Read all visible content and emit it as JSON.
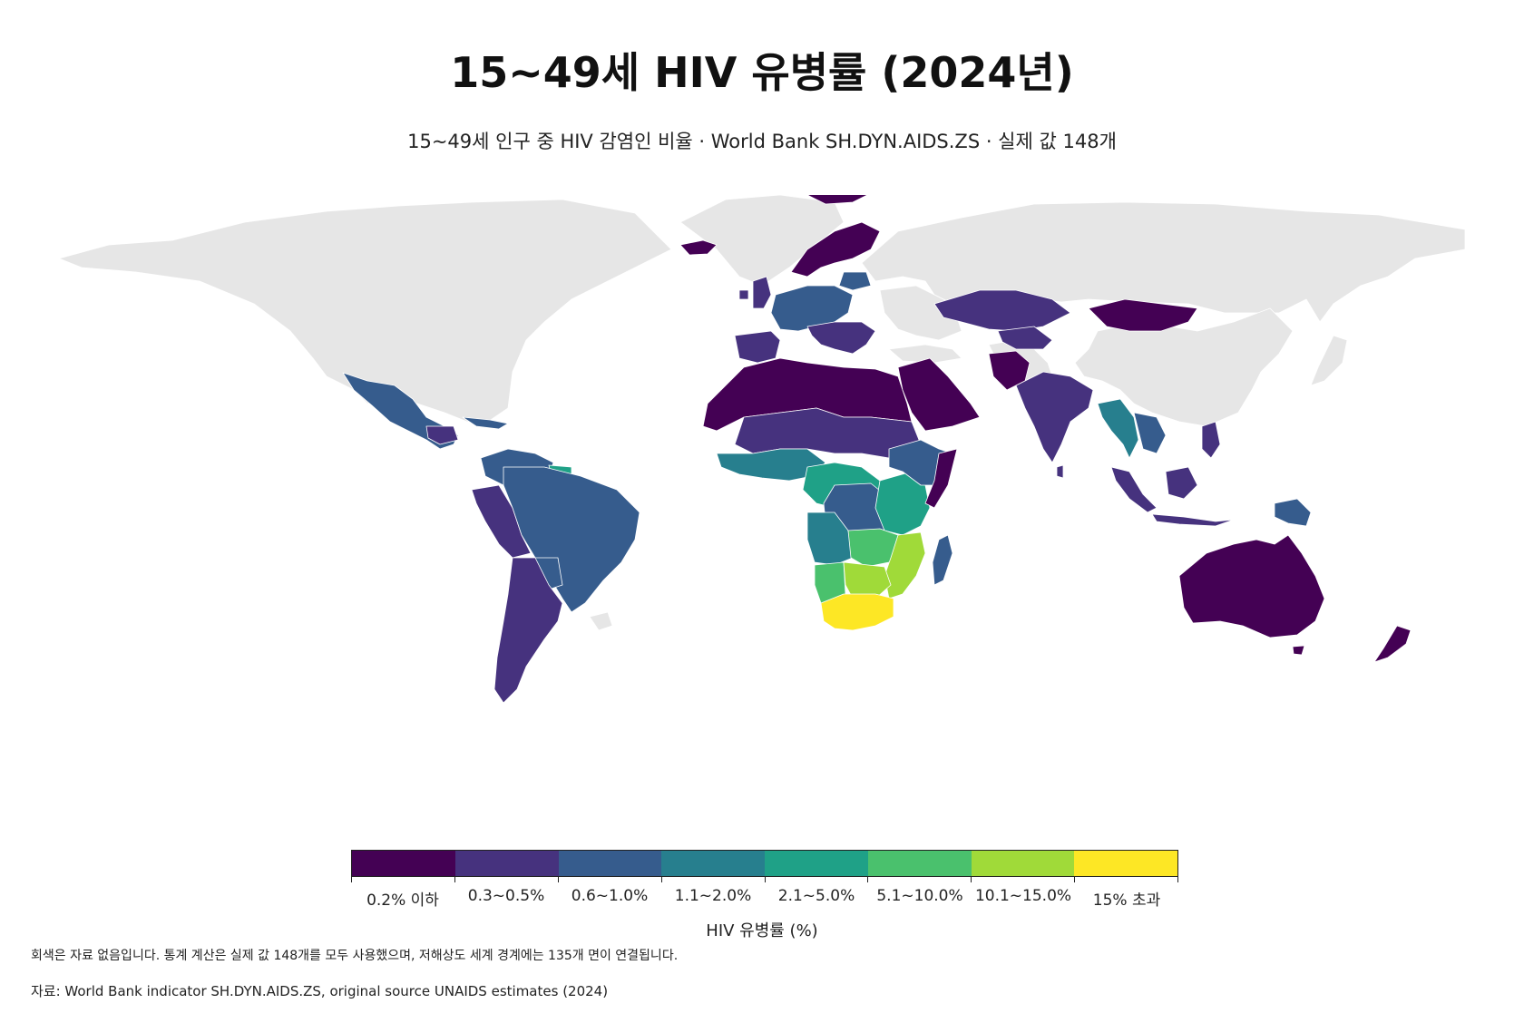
{
  "title": "15~49세 HIV 유병률 (2024년)",
  "subtitle": "15~49세 인구 중 HIV 감염인 비율 · World Bank SH.DYN.AIDS.ZS · 실제 값 148개",
  "colors": {
    "no_data": "#e6e6e6",
    "border": "#ffffff",
    "bins": [
      "#440154",
      "#46327e",
      "#365c8d",
      "#277f8e",
      "#1fa187",
      "#4ac16d",
      "#a0da39",
      "#fde725"
    ]
  },
  "legend": {
    "title": "HIV 유병률 (%)",
    "labels": [
      "0.2% 이하",
      "0.3~0.5%",
      "0.6~1.0%",
      "1.1~2.0%",
      "2.1~5.0%",
      "5.1~10.0%",
      "10.1~15.0%",
      "15% 초과"
    ]
  },
  "note": "회색은 자료 없음입니다. 통계 계산은 실제 값 148개를 모두 사용했으며, 저해상도 세계 경계에는 135개 면이 연결됩니다.",
  "source": "자료: World Bank indicator SH.DYN.AIDS.ZS, original source UNAIDS estimates (2024)"
}
